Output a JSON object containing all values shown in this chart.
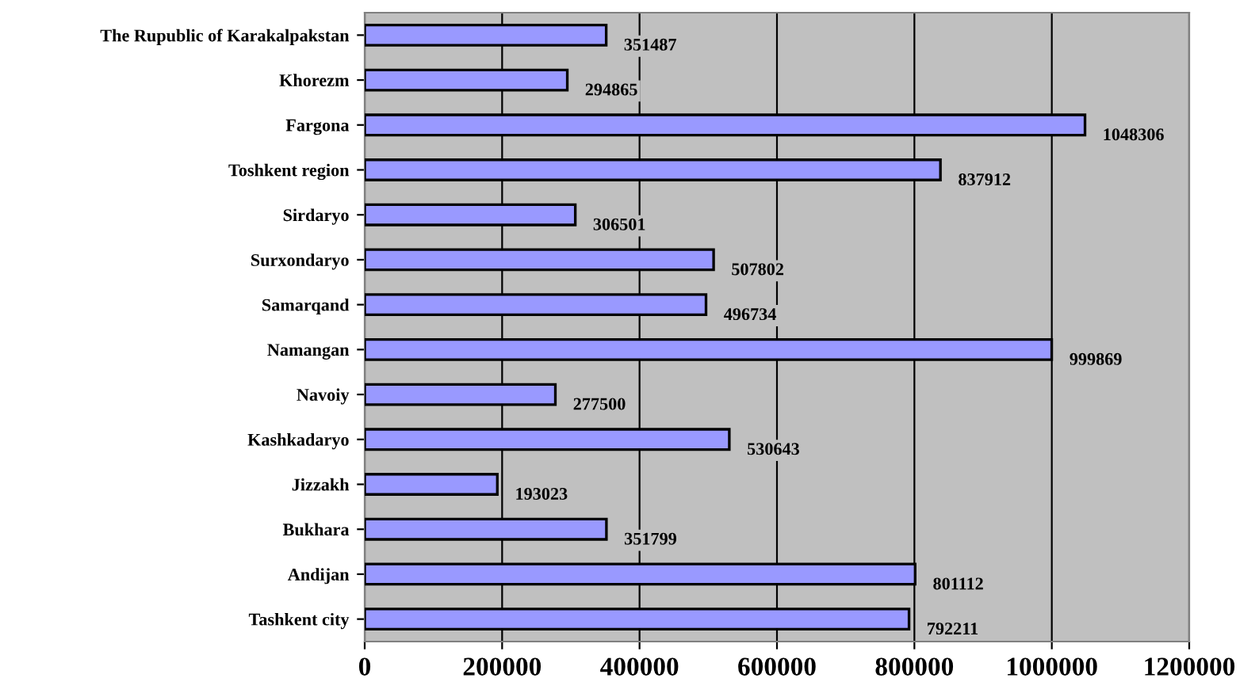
{
  "chart_data": {
    "type": "bar",
    "orientation": "horizontal",
    "categories": [
      "The Rupublic of Karakalpakstan",
      "Khorezm",
      "Fargona",
      "Toshkent region",
      "Sirdaryo",
      "Surxondaryo",
      "Samarqand",
      "Namangan",
      "Navoiy",
      "Kashkadaryo",
      "Jizzakh",
      "Bukhara",
      "Andijan",
      "Tashkent city"
    ],
    "values": [
      351487,
      294865,
      1048306,
      837912,
      306501,
      507802,
      496734,
      999869,
      277500,
      530643,
      193023,
      351799,
      801112,
      792211
    ],
    "color": "#9999ff",
    "xlim": [
      0,
      1200000
    ],
    "xticks": [
      0,
      200000,
      400000,
      600000,
      800000,
      1000000,
      1200000
    ],
    "grid": "x",
    "data_labels": true
  }
}
